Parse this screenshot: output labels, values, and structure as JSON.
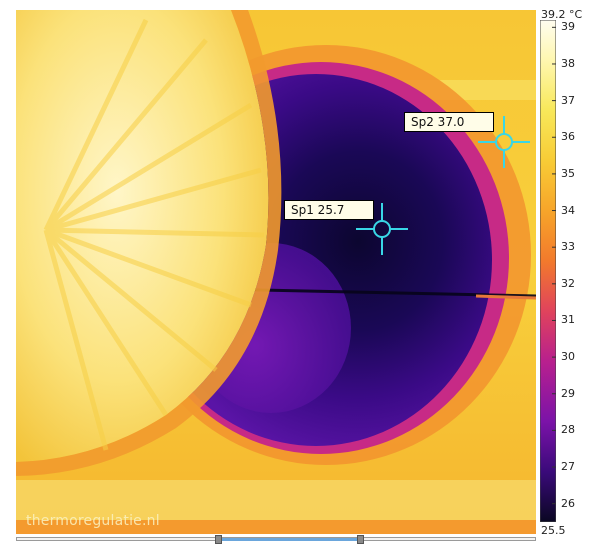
{
  "markers": [
    {
      "id": "sp1",
      "label": "Sp1 25.7"
    },
    {
      "id": "sp2",
      "label": "Sp2 37.0"
    }
  ],
  "watermark": "thermoregulatie.nl",
  "scale": {
    "max_label": "39.2 °C",
    "min_label": "25.5",
    "ticks": [
      "39",
      "38",
      "37",
      "36",
      "35",
      "34",
      "33",
      "32",
      "31",
      "30",
      "29",
      "28",
      "27",
      "26"
    ],
    "tick_values": [
      39,
      38,
      37,
      36,
      35,
      34,
      33,
      32,
      31,
      30,
      29,
      28,
      27,
      26
    ],
    "max": 39.2,
    "min": 25.5
  },
  "crosshair_color": "#39d6e6",
  "palette": [
    "#0a0722",
    "#3a0a7a",
    "#7b13a8",
    "#b8208e",
    "#e0435c",
    "#f27a2c",
    "#f7a52a",
    "#f8cc36",
    "#f8e85a",
    "#fff7b0",
    "#fffdf0"
  ]
}
